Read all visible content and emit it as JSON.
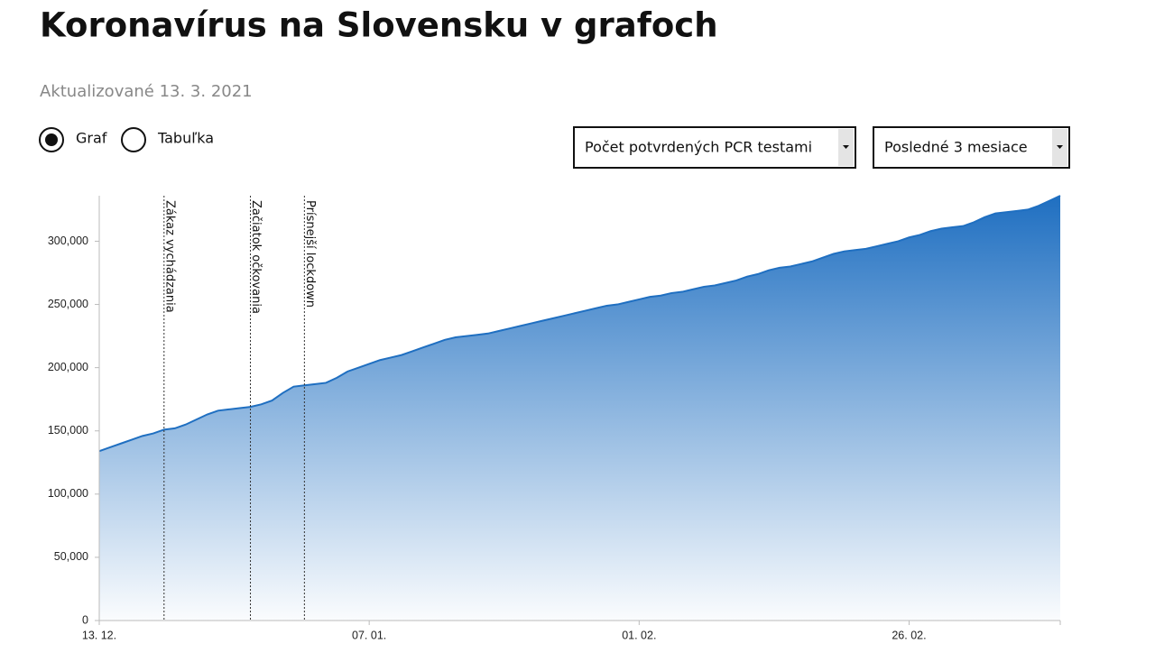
{
  "header": {
    "title": "Koronavírus na Slovensku v grafoch",
    "updated": "Aktualizované 13. 3. 2021"
  },
  "controls": {
    "radios": [
      "Graf",
      "Tabuľka"
    ],
    "selects": [
      "Počet potvrdených PCR testami",
      "Posledné 3 mesiace"
    ]
  },
  "chart_data": {
    "type": "area",
    "categories": [
      "13. 12.",
      null,
      null,
      null,
      null,
      null,
      null,
      null,
      null,
      null,
      null,
      null,
      null,
      null,
      null,
      null,
      null,
      null,
      null,
      null,
      null,
      null,
      null,
      null,
      null,
      "07. 01.",
      null,
      null,
      null,
      null,
      null,
      null,
      null,
      null,
      null,
      null,
      null,
      null,
      null,
      null,
      null,
      null,
      null,
      null,
      null,
      null,
      null,
      null,
      null,
      null,
      "01. 02.",
      null,
      null,
      null,
      null,
      null,
      null,
      null,
      null,
      null,
      null,
      null,
      null,
      null,
      null,
      null,
      null,
      null,
      null,
      null,
      null,
      null,
      null,
      null,
      null,
      "26. 02.",
      null,
      null,
      null,
      null,
      null,
      null,
      null,
      null,
      null,
      null,
      null,
      null,
      null,
      null
    ],
    "values": [
      134000,
      137000,
      140000,
      143000,
      146000,
      148000,
      151000,
      152000,
      155000,
      159000,
      163000,
      166000,
      167000,
      168000,
      169000,
      171000,
      174000,
      180000,
      185000,
      186000,
      187000,
      188000,
      192000,
      197000,
      200000,
      203000,
      206000,
      208000,
      210000,
      213000,
      216000,
      219000,
      222000,
      224000,
      225000,
      226000,
      227000,
      229000,
      231000,
      233000,
      235000,
      237000,
      239000,
      241000,
      243000,
      245000,
      247000,
      249000,
      250000,
      252000,
      254000,
      256000,
      257000,
      259000,
      260000,
      262000,
      264000,
      265000,
      267000,
      269000,
      272000,
      274000,
      277000,
      279000,
      280000,
      282000,
      284000,
      287000,
      290000,
      292000,
      293000,
      294000,
      296000,
      298000,
      300000,
      303000,
      305000,
      308000,
      310000,
      311000,
      312000,
      315000,
      319000,
      322000,
      323000,
      324000,
      325000,
      328000,
      332000,
      336000
    ],
    "color": "#1f6fc1",
    "ylim": [
      0,
      336000
    ],
    "yticks": [
      0,
      {
        "value": 50000,
        "label": "50,000"
      },
      {
        "value": 100000,
        "label": "100,000"
      },
      {
        "value": 150000,
        "label": "150,000"
      },
      {
        "value": 200000,
        "label": "200,000"
      },
      {
        "value": 250000,
        "label": "250,000"
      },
      {
        "value": 300000,
        "label": "300,000"
      }
    ],
    "annotations": [
      {
        "label": "Zákaz vychádzania",
        "index": 6
      },
      {
        "label": "Začiatok očkovania",
        "index": 14
      },
      {
        "label": "Prísnejší lockdown",
        "index": 19
      }
    ]
  }
}
